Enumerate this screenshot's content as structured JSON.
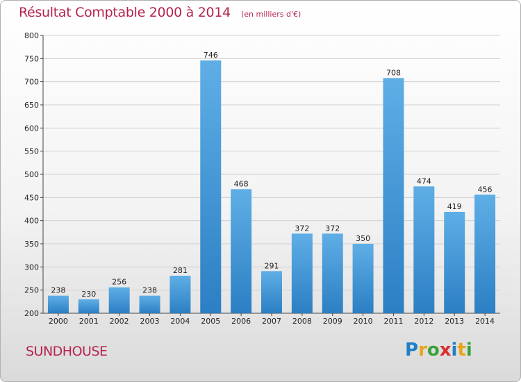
{
  "header": {
    "title": "Résultat Comptable 2000 à 2014",
    "subtitle": "(en milliers d'€)"
  },
  "place": "SUNDHOUSE",
  "logo": {
    "letters": [
      "P",
      "r",
      "o",
      "x",
      "i",
      "t",
      "i"
    ]
  },
  "colors": {
    "title": "#b5234d",
    "bar_light": "#5faee6",
    "bar_dark": "#2b7fc3",
    "grid": "#d0d0d0"
  },
  "chart_data": {
    "type": "bar",
    "title": "Résultat Comptable 2000 à 2014",
    "subtitle": "(en milliers d'€)",
    "xlabel": "",
    "ylabel": "",
    "categories": [
      "2000",
      "2001",
      "2002",
      "2003",
      "2004",
      "2005",
      "2006",
      "2007",
      "2008",
      "2009",
      "2010",
      "2011",
      "2012",
      "2013",
      "2014"
    ],
    "values": [
      238,
      230,
      256,
      238,
      281,
      746,
      468,
      291,
      372,
      372,
      350,
      708,
      474,
      419,
      456
    ],
    "ylim": [
      200,
      800
    ],
    "yticks": [
      200,
      250,
      300,
      350,
      400,
      450,
      500,
      550,
      600,
      650,
      700,
      750,
      800
    ],
    "grid": true,
    "data_labels": true
  }
}
